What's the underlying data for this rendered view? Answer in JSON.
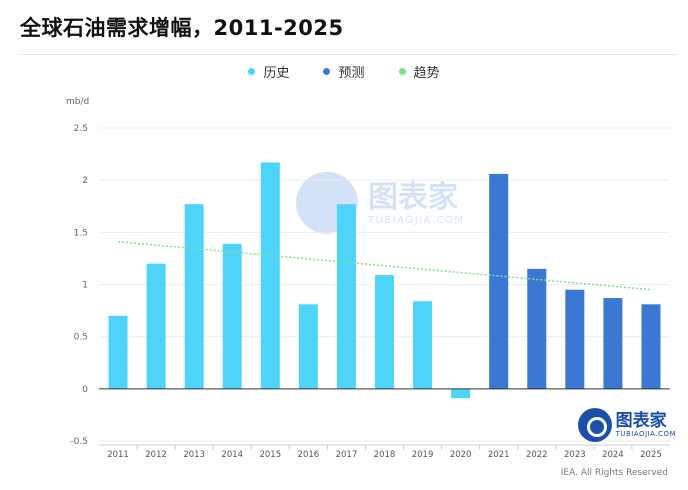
{
  "page": {
    "title": "全球石油需求增幅，2011-2025",
    "unit_label": "mb/d",
    "source": "IEA. All Rights Reserved"
  },
  "logo": {
    "main": "图表家",
    "sub": "TUBIAOJIA.COM",
    "icon": "robot-head-icon"
  },
  "watermark": {
    "main": "图表家",
    "sub": "TUBIAOJIA.COM",
    "icon": "robot-head-icon"
  },
  "colors": {
    "history": "#4dd4f8",
    "forecast": "#3b78d4",
    "trend": "#7ee08a"
  },
  "legend": [
    {
      "label": "历史",
      "color": "#4dd4f8"
    },
    {
      "label": "预测",
      "color": "#3b78d4"
    },
    {
      "label": "趋势",
      "color": "#7ee08a"
    }
  ],
  "chart_data": {
    "type": "bar",
    "title": "全球石油需求增幅，2011-2025",
    "ylabel": "mb/d",
    "ylim": [
      -0.5,
      2.5
    ],
    "yticks": [
      "2.5",
      "2",
      "1.5",
      "1",
      "0.5",
      "0",
      "-0.5"
    ],
    "ytick_values": [
      2.5,
      2,
      1.5,
      1,
      0.5,
      0,
      -0.5
    ],
    "categories": [
      "2011",
      "2012",
      "2013",
      "2014",
      "2015",
      "2016",
      "2017",
      "2018",
      "2019",
      "2020",
      "2021",
      "2022",
      "2023",
      "2024",
      "2025"
    ],
    "series": [
      {
        "name": "历史",
        "values": [
          0.7,
          1.2,
          1.77,
          1.39,
          2.17,
          0.81,
          1.77,
          1.09,
          0.84,
          -0.09,
          null,
          null,
          null,
          null,
          null
        ]
      },
      {
        "name": "预测",
        "values": [
          null,
          null,
          null,
          null,
          null,
          null,
          null,
          null,
          null,
          null,
          2.06,
          1.15,
          0.95,
          0.87,
          0.81
        ]
      }
    ],
    "trend": {
      "name": "趋势",
      "start": 1.41,
      "end": 0.95
    },
    "grid": true,
    "legend_position": "top-center"
  }
}
